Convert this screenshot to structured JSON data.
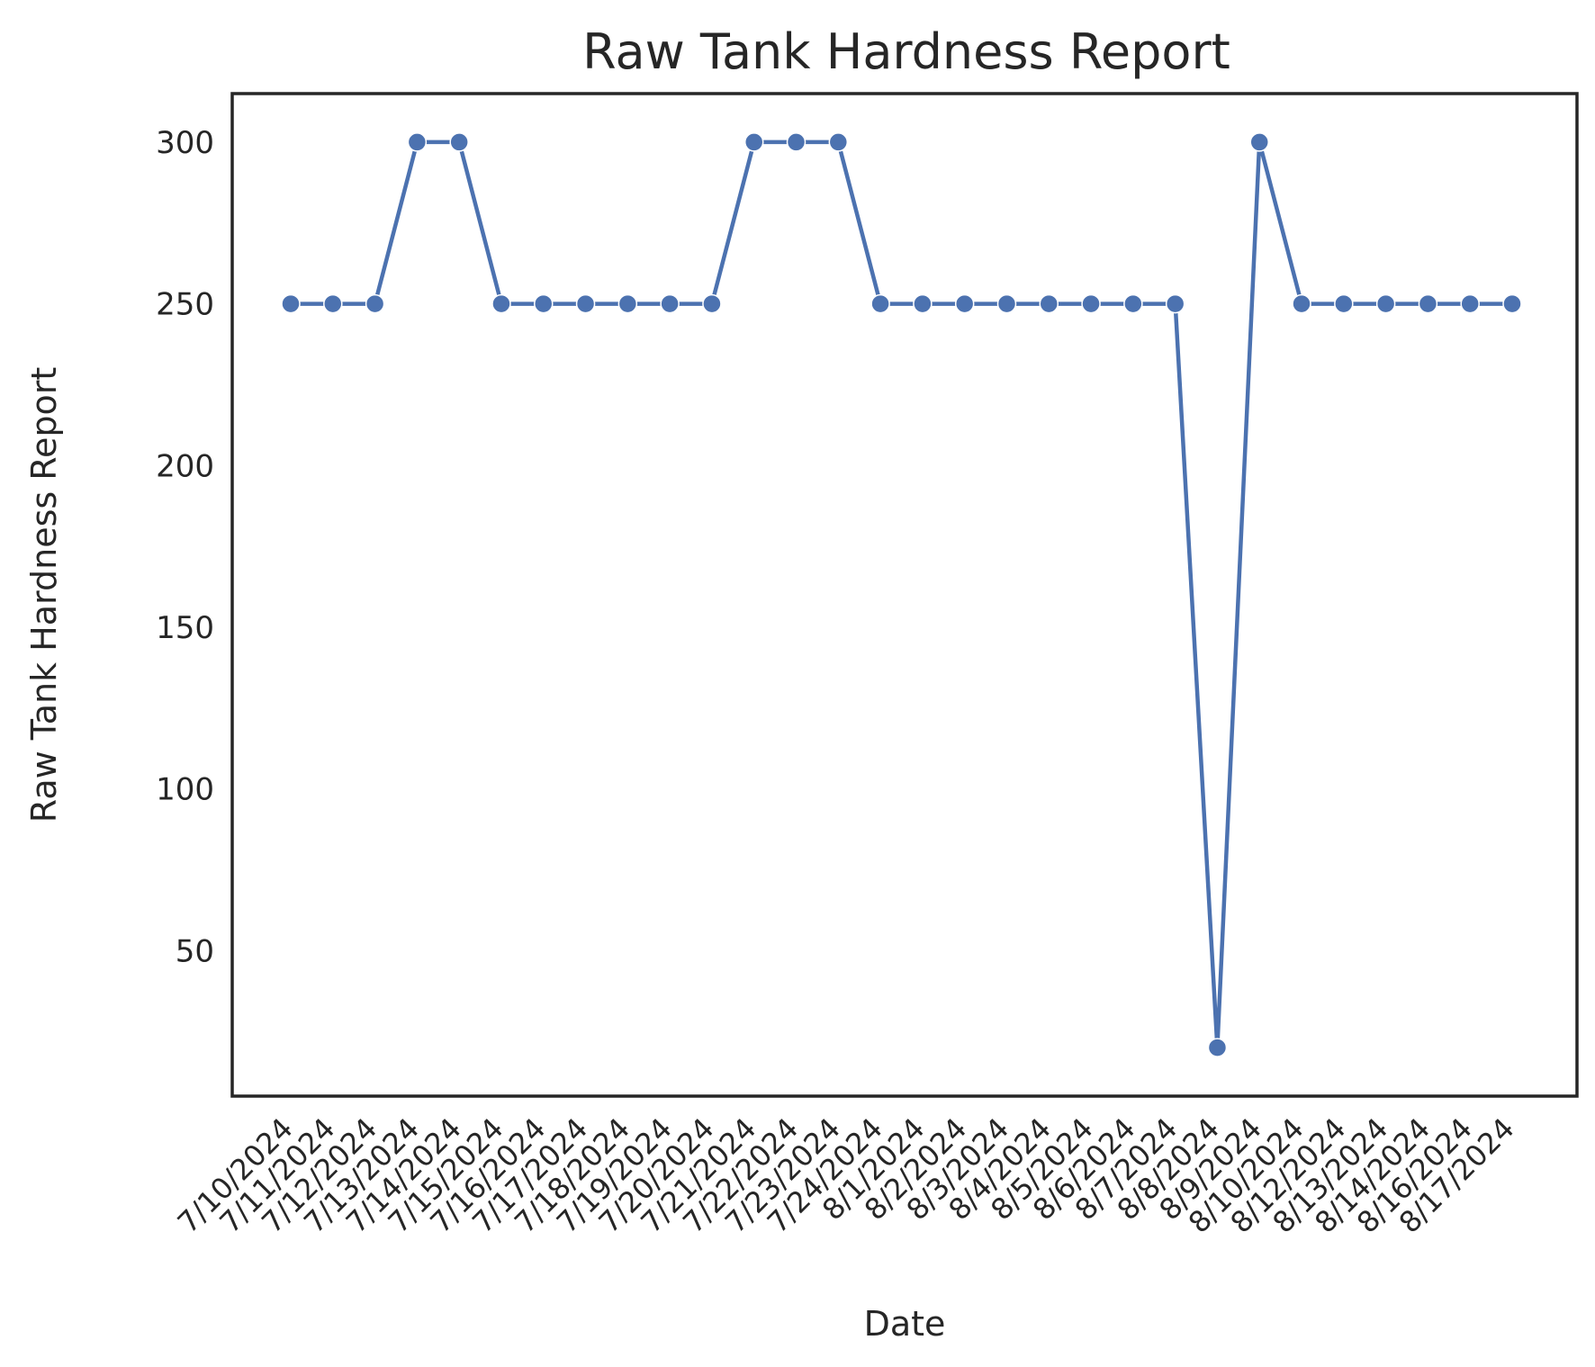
{
  "chart_data": {
    "type": "line",
    "title": "Raw Tank Hardness Report",
    "xlabel": "Date",
    "ylabel": "Raw Tank Hardness Report",
    "ylim": [
      5,
      315
    ],
    "yticks": [
      50,
      100,
      150,
      200,
      250,
      300
    ],
    "grid": false,
    "legend": "none",
    "series_color": "#4c72b0",
    "categories": [
      "7/10/2024",
      "7/11/2024",
      "7/12/2024",
      "7/13/2024",
      "7/14/2024",
      "7/15/2024",
      "7/16/2024",
      "7/17/2024",
      "7/18/2024",
      "7/19/2024",
      "7/20/2024",
      "7/21/2024",
      "7/22/2024",
      "7/23/2024",
      "7/24/2024",
      "8/1/2024",
      "8/2/2024",
      "8/3/2024",
      "8/4/2024",
      "8/5/2024",
      "8/6/2024",
      "8/7/2024",
      "8/8/2024",
      "8/9/2024",
      "8/10/2024",
      "8/12/2024",
      "8/13/2024",
      "8/14/2024",
      "8/16/2024",
      "8/17/2024"
    ],
    "series": [
      {
        "values": [
          250,
          250,
          250,
          300,
          300,
          250,
          250,
          250,
          250,
          250,
          250,
          300,
          300,
          300,
          250,
          250,
          250,
          250,
          250,
          250,
          250,
          250,
          20,
          300,
          250,
          250,
          250,
          250,
          250,
          250
        ]
      }
    ]
  }
}
